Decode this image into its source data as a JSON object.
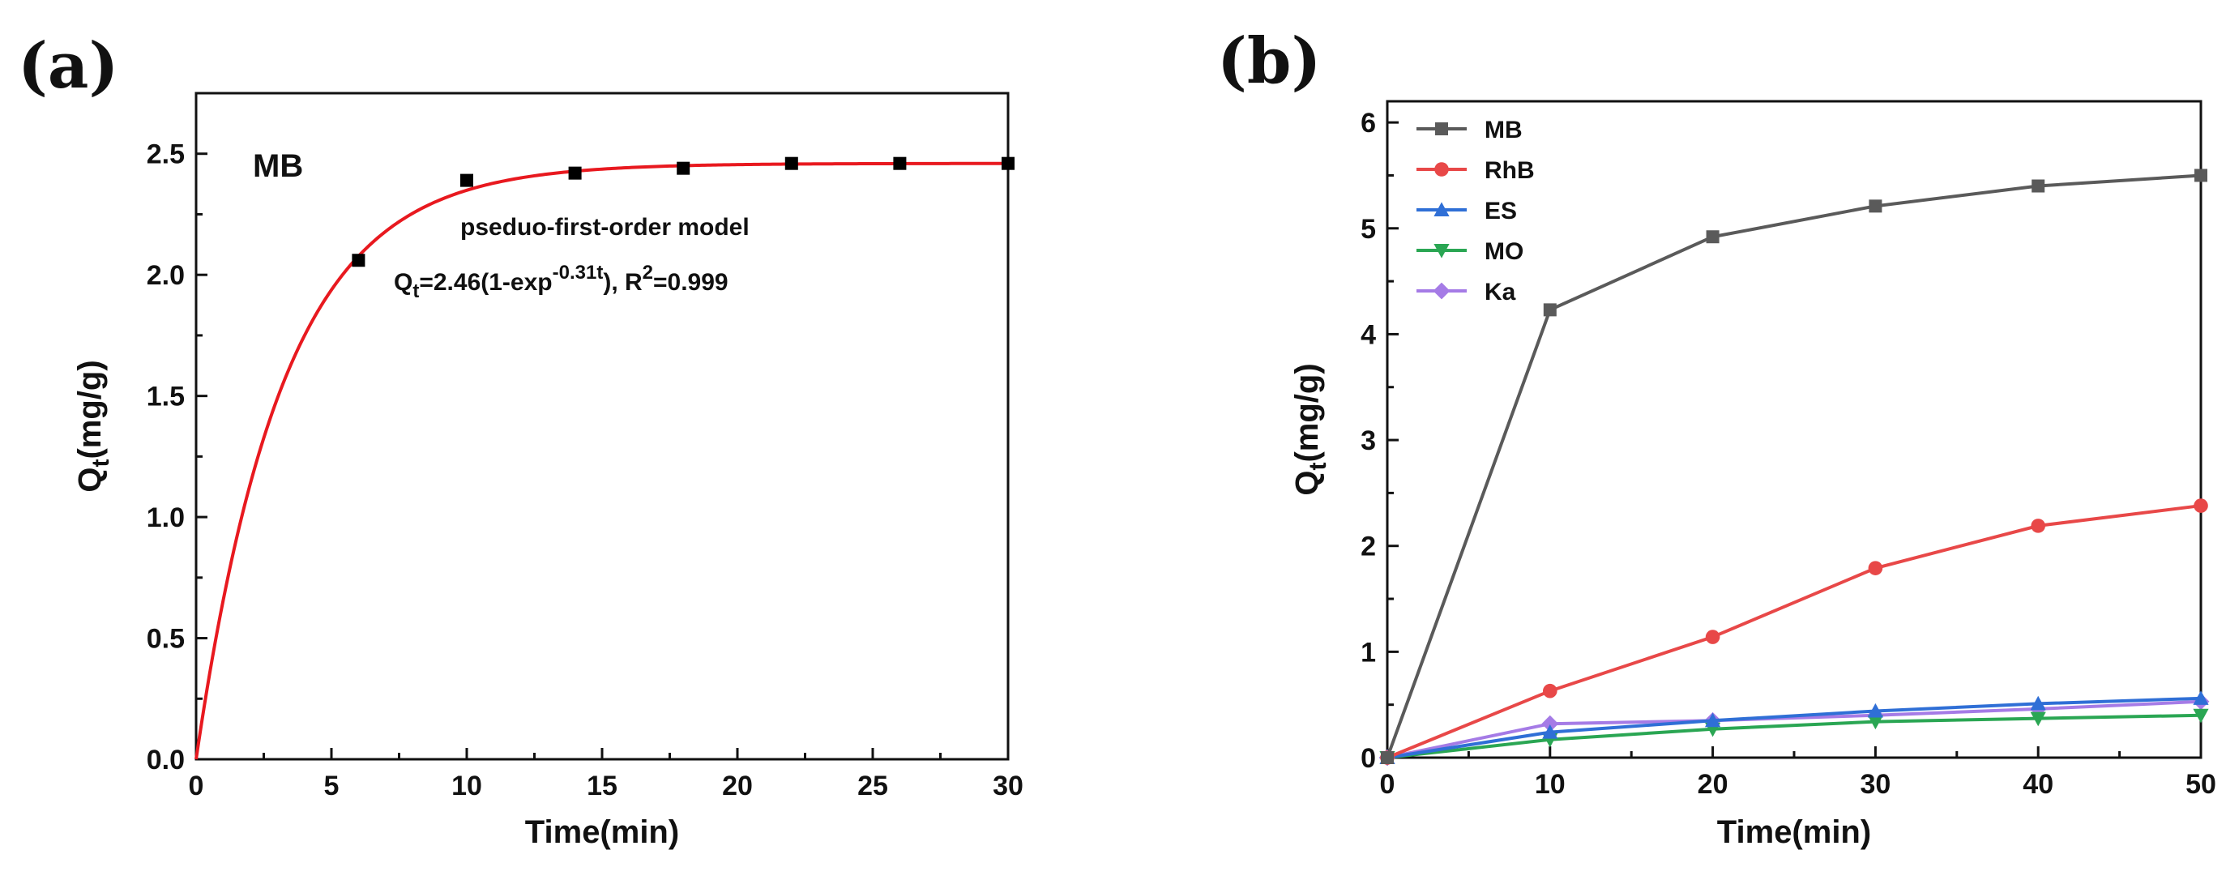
{
  "chart_data": [
    {
      "panel": "(a)",
      "type": "scatter",
      "title": "",
      "xlabel": "Time(min)",
      "ylabel": {
        "base": "Q",
        "sub": "t",
        "rest": "(mg/g)"
      },
      "xlim": [
        0,
        30
      ],
      "ylim": [
        0,
        2.75
      ],
      "xticks": [
        "0",
        "5",
        "10",
        "15",
        "20",
        "25",
        "30"
      ],
      "yticks": [
        "0.0",
        "0.5",
        "1.0",
        "1.5",
        "2.0",
        "2.5"
      ],
      "grid": false,
      "series": [
        {
          "type": "scatter",
          "color": "#000000",
          "x": [
            6,
            10,
            14,
            18,
            22,
            26,
            30
          ],
          "y": [
            2.06,
            2.39,
            2.42,
            2.44,
            2.46,
            2.46,
            2.46
          ]
        },
        {
          "type": "fit-line",
          "color": "#e8191f",
          "model": {
            "qe": 2.46,
            "k": 0.31
          },
          "x_range": [
            0,
            30
          ]
        }
      ],
      "annotations": {
        "dye_label": "MB",
        "model_name": "pseduo-first-order model",
        "equation": {
          "q": "Q",
          "q_sub": "t",
          "eq_part1": "=2.46(1-exp",
          "exp_sup": "-0.31t",
          "eq_part2": "),  R",
          "r_sup": "2",
          "eq_part3": "=0.999"
        }
      }
    },
    {
      "panel": "(b)",
      "type": "line",
      "title": "",
      "xlabel": "Time(min)",
      "ylabel": {
        "base": "Q",
        "sub": "t",
        "rest": "(mg/g)"
      },
      "xlim": [
        0,
        50
      ],
      "ylim": [
        0,
        6.2
      ],
      "xticks": [
        "0",
        "10",
        "20",
        "30",
        "40",
        "50"
      ],
      "yticks": [
        "0",
        "1",
        "2",
        "3",
        "4",
        "5",
        "6"
      ],
      "grid": false,
      "legend_position": "top-left",
      "x": [
        0,
        10,
        20,
        30,
        40,
        50
      ],
      "series": [
        {
          "name": "MB",
          "color": "#5a5a5a",
          "marker": "square",
          "values": [
            0,
            4.23,
            4.92,
            5.21,
            5.4,
            5.5
          ]
        },
        {
          "name": "RhB",
          "color": "#e84848",
          "marker": "circle",
          "values": [
            0,
            0.63,
            1.14,
            1.79,
            2.19,
            2.38
          ]
        },
        {
          "name": "ES",
          "color": "#2f6fd6",
          "marker": "triangle-up",
          "values": [
            0,
            0.24,
            0.35,
            0.44,
            0.51,
            0.56
          ]
        },
        {
          "name": "MO",
          "color": "#2aa653",
          "marker": "triangle-down",
          "values": [
            0,
            0.17,
            0.27,
            0.34,
            0.37,
            0.4
          ]
        },
        {
          "name": "Ka",
          "color": "#a57be6",
          "marker": "diamond",
          "values": [
            0,
            0.32,
            0.35,
            0.4,
            0.46,
            0.53
          ]
        }
      ]
    }
  ]
}
